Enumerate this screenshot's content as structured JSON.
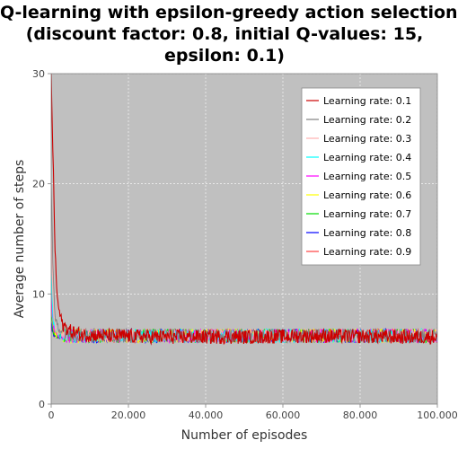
{
  "chart_data": {
    "type": "line",
    "title_lines": [
      "Q-learning with epsilon-greedy action selection",
      "(discount factor: 0.8, initial Q-values: 15,",
      "epsilon: 0.1)"
    ],
    "xlabel": "Number of episodes",
    "ylabel": "Average number of steps",
    "xlim": [
      0,
      100000
    ],
    "ylim": [
      0,
      30
    ],
    "xticks": [
      0,
      20000,
      40000,
      60000,
      80000,
      100000
    ],
    "xtick_labels": [
      "0",
      "20.000",
      "40.000",
      "60.000",
      "80.000",
      "100.000"
    ],
    "yticks": [
      0,
      10,
      20,
      30
    ],
    "ytick_labels": [
      "0",
      "10",
      "20",
      "30"
    ],
    "grid": true,
    "legend_position": "top-right",
    "plot_background": "#c0c0c0",
    "series": [
      {
        "name": "Learning rate: 0.1",
        "color": "#cc0000",
        "x": [
          0,
          500,
          1000,
          1500,
          2000,
          3000,
          5000,
          8000,
          15000,
          30000,
          50000,
          70000,
          90000,
          100000
        ],
        "y": [
          30,
          22,
          14,
          10,
          8.5,
          7.2,
          6.6,
          6.3,
          6.2,
          6.1,
          6.1,
          6.2,
          6.1,
          6.1
        ]
      },
      {
        "name": "Learning rate: 0.2",
        "color": "#808080",
        "x": [
          0,
          500,
          1000,
          2000,
          5000,
          20000,
          50000,
          100000
        ],
        "y": [
          20,
          12,
          8,
          6.8,
          6.3,
          6.2,
          6.2,
          6.2
        ]
      },
      {
        "name": "Learning rate: 0.3",
        "color": "#ffb0b0",
        "x": [
          0,
          500,
          1000,
          2000,
          5000,
          20000,
          50000,
          100000
        ],
        "y": [
          16,
          9,
          7,
          6.5,
          6.3,
          6.2,
          6.2,
          6.2
        ]
      },
      {
        "name": "Learning rate: 0.4",
        "color": "#00ffff",
        "x": [
          0,
          500,
          1000,
          2000,
          5000,
          20000,
          50000,
          100000
        ],
        "y": [
          12,
          7.5,
          6.6,
          6.3,
          6.2,
          6.2,
          6.2,
          6.2
        ]
      },
      {
        "name": "Learning rate: 0.5",
        "color": "#ff00ff",
        "x": [
          0,
          500,
          1000,
          2000,
          5000,
          20000,
          50000,
          100000
        ],
        "y": [
          10,
          7,
          6.5,
          6.3,
          6.2,
          6.2,
          6.2,
          6.2
        ]
      },
      {
        "name": "Learning rate: 0.6",
        "color": "#ffff00",
        "x": [
          0,
          500,
          1000,
          2000,
          5000,
          20000,
          50000,
          100000
        ],
        "y": [
          9,
          6.8,
          6.4,
          6.3,
          6.2,
          6.2,
          6.2,
          6.2
        ]
      },
      {
        "name": "Learning rate: 0.7",
        "color": "#00dd00",
        "x": [
          0,
          500,
          1000,
          2000,
          5000,
          20000,
          50000,
          100000
        ],
        "y": [
          8,
          6.6,
          6.4,
          6.3,
          6.2,
          6.2,
          6.2,
          6.2
        ]
      },
      {
        "name": "Learning rate: 0.8",
        "color": "#0000ff",
        "x": [
          0,
          500,
          1000,
          2000,
          5000,
          20000,
          50000,
          100000
        ],
        "y": [
          7.5,
          6.5,
          6.3,
          6.3,
          6.2,
          6.2,
          6.2,
          6.2
        ]
      },
      {
        "name": "Learning rate: 0.9",
        "color": "#ff4040",
        "x": [
          0,
          500,
          1000,
          2000,
          5000,
          20000,
          50000,
          100000
        ],
        "y": [
          7,
          6.4,
          6.3,
          6.2,
          6.2,
          6.2,
          6.2,
          6.2
        ]
      }
    ]
  }
}
